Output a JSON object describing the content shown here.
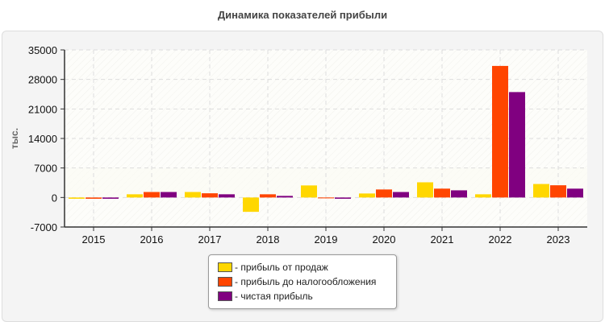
{
  "chart_data": {
    "type": "bar",
    "title": "Динамика показателей прибыли",
    "ylabel": "тыс.",
    "xlabel": "",
    "categories": [
      "2015",
      "2016",
      "2017",
      "2018",
      "2019",
      "2020",
      "2021",
      "2022",
      "2023"
    ],
    "ylim": [
      -7000,
      35000
    ],
    "yticks": [
      35000,
      28000,
      21000,
      14000,
      7000,
      0,
      -7000
    ],
    "grid": true,
    "legend_position": "bottom",
    "series": [
      {
        "name": "- прибыль от продаж",
        "color": "#FFD700",
        "values": [
          -300,
          760,
          1300,
          -3400,
          2860,
          950,
          3600,
          760,
          3200
        ]
      },
      {
        "name": "- прибыль до налогообложения",
        "color": "#FF4500",
        "values": [
          -300,
          1300,
          1000,
          760,
          -200,
          1900,
          2100,
          31200,
          2900
        ]
      },
      {
        "name": "- чистая прибыль",
        "color": "#800080",
        "values": [
          -300,
          1300,
          760,
          380,
          -300,
          1300,
          1700,
          25000,
          2100
        ]
      }
    ]
  }
}
